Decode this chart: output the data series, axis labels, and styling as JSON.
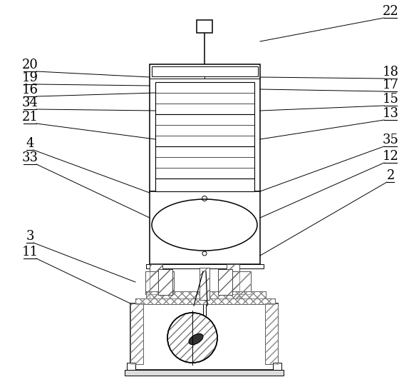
{
  "figure_width": 5.74,
  "figure_height": 5.35,
  "dpi": 100,
  "bg_color": "#ffffff",
  "line_color": "#000000",
  "label_fontsize": 13,
  "label_font": "DejaVu Serif",
  "labels_left": [
    [
      "20",
      40,
      105
    ],
    [
      "19",
      40,
      120
    ],
    [
      "16",
      40,
      138
    ],
    [
      "34",
      40,
      157
    ],
    [
      "21",
      40,
      180
    ],
    [
      "4",
      40,
      215
    ],
    [
      "33",
      40,
      238
    ],
    [
      "3",
      40,
      345
    ],
    [
      "11",
      40,
      370
    ]
  ],
  "labels_right": [
    [
      "22",
      548,
      28
    ],
    [
      "18",
      548,
      115
    ],
    [
      "17",
      548,
      133
    ],
    [
      "15",
      548,
      155
    ],
    [
      "13",
      548,
      180
    ],
    [
      "35",
      548,
      215
    ],
    [
      "12",
      548,
      238
    ],
    [
      "2",
      548,
      265
    ]
  ]
}
